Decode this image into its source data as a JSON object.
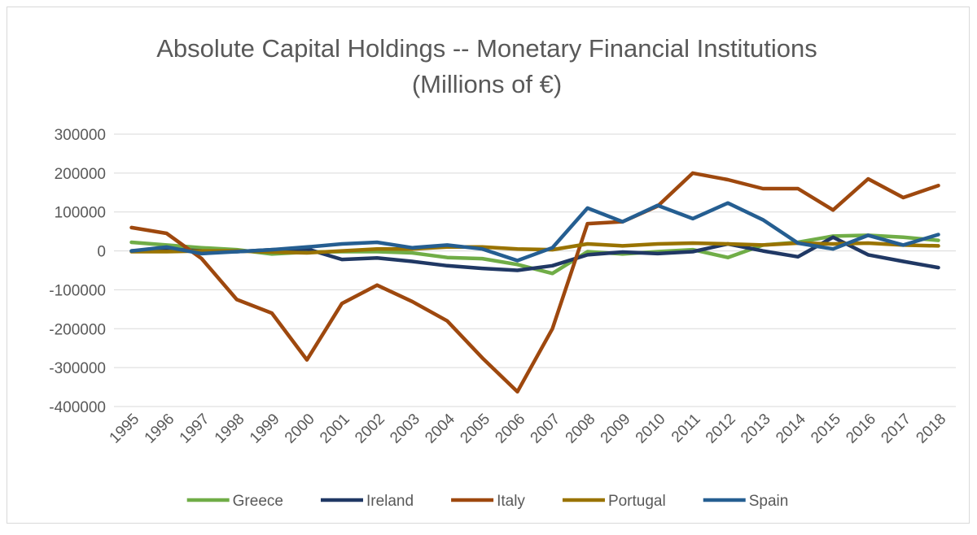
{
  "chart_data": {
    "type": "line",
    "title": [
      "Absolute Capital Holdings -- Monetary Financial Institutions",
      "(Millions of €)"
    ],
    "categories": [
      "1995",
      "1996",
      "1997",
      "1998",
      "1999",
      "2000",
      "2001",
      "2002",
      "2003",
      "2004",
      "2005",
      "2006",
      "2007",
      "2008",
      "2009",
      "2010",
      "2011",
      "2012",
      "2013",
      "2014",
      "2015",
      "2016",
      "2017",
      "2018"
    ],
    "series": [
      {
        "name": "Greece",
        "color": "#70ad47",
        "values": [
          22000,
          15000,
          8000,
          3000,
          -8000,
          -3000,
          -2000,
          -2000,
          -5000,
          -17000,
          -20000,
          -35000,
          -58000,
          -2000,
          -8000,
          -2000,
          3000,
          -17000,
          15000,
          22000,
          38000,
          40000,
          35000,
          27000
        ]
      },
      {
        "name": "Ireland",
        "color": "#203864",
        "values": [
          0,
          5000,
          0,
          -2000,
          3000,
          5000,
          -22000,
          -18000,
          -27000,
          -38000,
          -45000,
          -50000,
          -38000,
          -10000,
          -3000,
          -7000,
          -2000,
          18000,
          0,
          -15000,
          35000,
          -10000,
          -27000,
          -43000
        ]
      },
      {
        "name": "Italy",
        "color": "#9e480e",
        "values": [
          60000,
          45000,
          -20000,
          -125000,
          -160000,
          -280000,
          -135000,
          -88000,
          -130000,
          -180000,
          -275000,
          -362000,
          -200000,
          70000,
          75000,
          115000,
          200000,
          183000,
          160000,
          160000,
          105000,
          185000,
          137000,
          168000
        ]
      },
      {
        "name": "Portugal",
        "color": "#997300",
        "values": [
          -2000,
          -2000,
          0,
          0,
          -3000,
          -5000,
          0,
          5000,
          5000,
          10000,
          10000,
          5000,
          3000,
          18000,
          13000,
          18000,
          20000,
          18000,
          15000,
          20000,
          18000,
          20000,
          15000,
          13000
        ]
      },
      {
        "name": "Spain",
        "color": "#255e91",
        "values": [
          0,
          10000,
          -7000,
          -2000,
          3000,
          10000,
          18000,
          22000,
          8000,
          15000,
          5000,
          -25000,
          8000,
          110000,
          75000,
          117000,
          83000,
          123000,
          80000,
          20000,
          5000,
          40000,
          15000,
          42000
        ]
      }
    ],
    "ylim": [
      -400000,
      300000
    ],
    "yticks": [
      300000,
      200000,
      100000,
      0,
      -100000,
      -200000,
      -300000,
      -400000
    ],
    "grid": true,
    "legend": "bottom"
  }
}
